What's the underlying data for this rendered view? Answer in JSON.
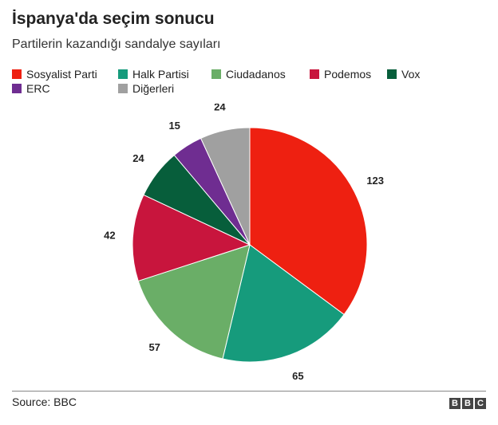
{
  "header": {
    "title": "İspanya'da seçim sonucu",
    "subtitle": "Partilerin kazandığı sandalye sayıları"
  },
  "chart_data": {
    "type": "pie",
    "title": "İspanya'da seçim sonucu",
    "subtitle": "Partilerin kazandığı sandalye sayıları",
    "legend_position": "top",
    "slices": [
      {
        "label": "Sosyalist Parti",
        "value": 123,
        "color": "#ee2011"
      },
      {
        "label": "Halk Partisi",
        "value": 65,
        "color": "#169b7c"
      },
      {
        "label": "Ciudadanos",
        "value": 57,
        "color": "#6aae67"
      },
      {
        "label": "Podemos",
        "value": 42,
        "color": "#c8153d"
      },
      {
        "label": "Vox",
        "value": 24,
        "color": "#075e3b"
      },
      {
        "label": "ERC",
        "value": 15,
        "color": "#6f2d91"
      },
      {
        "label": "Diğerleri",
        "value": 24,
        "color": "#a0a0a0"
      }
    ]
  },
  "footer": {
    "source": "Source: BBC",
    "logo_letters": [
      "B",
      "B",
      "C"
    ]
  }
}
